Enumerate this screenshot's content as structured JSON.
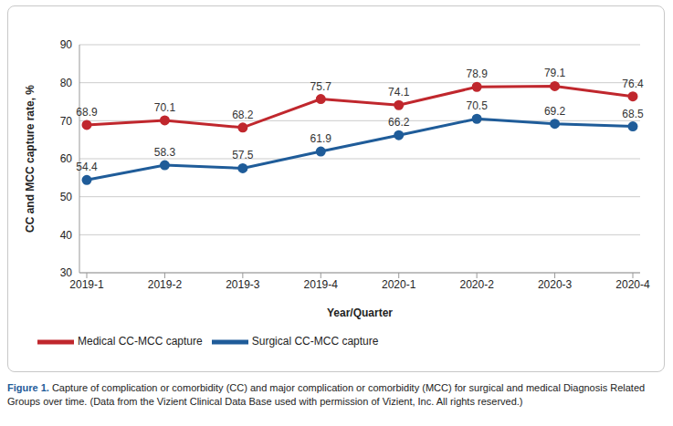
{
  "chart_data": {
    "type": "line",
    "x_label": "Year/Quarter",
    "y_label": "CC and MCC capture rate, %",
    "categories": [
      "2019-1",
      "2019-2",
      "2019-3",
      "2019-4",
      "2020-1",
      "2020-2",
      "2020-3",
      "2020-4"
    ],
    "series": [
      {
        "name": "Surgical CC-MCC capture",
        "color": "#1f5c99",
        "marker": "circle",
        "values": [
          54.4,
          58.3,
          57.5,
          61.9,
          66.2,
          70.5,
          69.2,
          68.5
        ]
      },
      {
        "name": "Medical CC-MCC capture",
        "color": "#c0272d",
        "marker": "circle",
        "values": [
          68.9,
          70.1,
          68.2,
          75.7,
          74.1,
          78.9,
          79.1,
          76.4
        ]
      }
    ],
    "ylim": [
      30,
      90
    ],
    "yticks": [
      30,
      40,
      50,
      60,
      70,
      80,
      90
    ],
    "grid": true,
    "legend": "bottom-left",
    "data_labels": true
  },
  "caption": {
    "label": "Figure 1.",
    "text": "Capture of complication or comorbidity (CC) and major complication or comorbidity (MCC) for surgical and medical Diagnosis Related Groups over time. (Data from the Vizient Clinical Data Base used with permission of Vizient, Inc. All rights reserved.)"
  }
}
